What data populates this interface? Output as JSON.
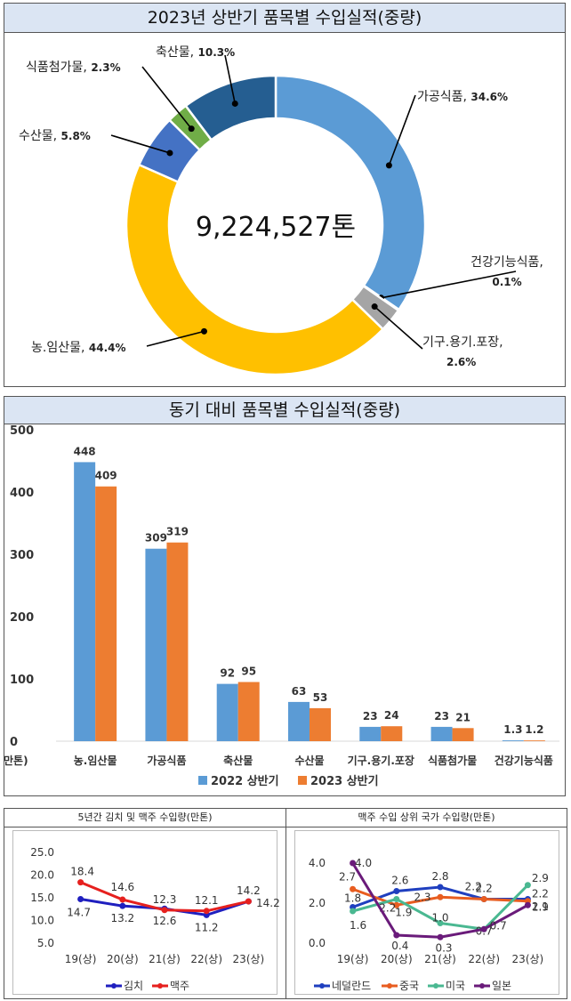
{
  "donut": {
    "title": "2023년 상반기 품목별 수입실적(중량)",
    "center_label": "9,224,527톤"
  },
  "bars": {
    "title": "동기 대비 품목별 수입실적(중량)",
    "unit": "만톤)"
  },
  "small1": {
    "title": "5년간 김치 및 맥주 수입량(만톤)"
  },
  "small2": {
    "title": "맥주 수입 상위 국가 수입량(만톤)"
  },
  "chart_data": [
    {
      "type": "pie",
      "title": "2023년 상반기 품목별 수입실적(중량)",
      "center_text": "9,224,527톤",
      "slices": [
        {
          "name": "가공식품",
          "value": 34.6,
          "label": "가공식품, 34.6%",
          "color": "#5b9bd5"
        },
        {
          "name": "건강기능식품",
          "value": 0.1,
          "label": "건강기능식품,|0.1%",
          "color": "#ffffff"
        },
        {
          "name": "기구.용기.포장",
          "value": 2.6,
          "label": "기구.용기.포장,|2.6%",
          "color": "#a5a5a5"
        },
        {
          "name": "농.임산물",
          "value": 44.4,
          "label": "농.임산물, 44.4%",
          "color": "#ffc000"
        },
        {
          "name": "수산물",
          "value": 5.8,
          "label": "수산물, 5.8%",
          "color": "#4472c4"
        },
        {
          "name": "식품첨가물",
          "value": 2.3,
          "label": "식품첨가물, 2.3%",
          "color": "#70ad47"
        },
        {
          "name": "축산물",
          "value": 10.3,
          "label": "축산물, 10.3%",
          "color": "#255e91"
        }
      ]
    },
    {
      "type": "bar",
      "title": "동기 대비 품목별 수입실적(중량)",
      "categories": [
        "농.임산물",
        "가공식품",
        "축산물",
        "수산물",
        "기구.용기.포장",
        "식품첨가물",
        "건강기능식품"
      ],
      "series": [
        {
          "name": "2022 상반기",
          "values": [
            448,
            309,
            92,
            63,
            23,
            23,
            1.3
          ],
          "color": "#5b9bd5"
        },
        {
          "name": "2023 상반기",
          "values": [
            409,
            319,
            95,
            53,
            24,
            21,
            1.2
          ],
          "color": "#ed7d31"
        }
      ],
      "ylim": [
        0,
        500
      ],
      "yticks": [
        0,
        100,
        200,
        300,
        400,
        500
      ],
      "ylabel": "",
      "legend": "bottom"
    },
    {
      "type": "line",
      "title": "5년간 김치 및 맥주 수입량(만톤)",
      "x": [
        "19(상)",
        "20(상)",
        "21(상)",
        "22(상)",
        "23(상)"
      ],
      "series": [
        {
          "name": "김치",
          "values": [
            14.7,
            13.2,
            12.6,
            11.2,
            14.2
          ],
          "color": "#1f1fbf"
        },
        {
          "name": "맥주",
          "values": [
            18.4,
            14.6,
            12.3,
            12.1,
            14.2
          ],
          "color": "#e6201e"
        }
      ],
      "ylim": [
        5.0,
        25.0
      ],
      "yticks": [
        "5.0",
        "10.0",
        "15.0",
        "20.0",
        "25.0"
      ],
      "legend": "bottom"
    },
    {
      "type": "line",
      "title": "맥주 수입 상위 국가 수입량(만톤)",
      "x": [
        "19(상)",
        "20(상)",
        "21(상)",
        "22(상)",
        "23(상)"
      ],
      "series": [
        {
          "name": "네덜란드",
          "values": [
            1.8,
            2.6,
            2.8,
            2.2,
            2.2
          ],
          "color": "#1f3fbf"
        },
        {
          "name": "중국",
          "values": [
            2.7,
            1.9,
            2.3,
            2.2,
            2.1
          ],
          "color": "#e85d20"
        },
        {
          "name": "미국",
          "values": [
            1.6,
            2.2,
            1.0,
            0.7,
            2.9
          ],
          "color": "#4ab891"
        },
        {
          "name": "일본",
          "values": [
            4.0,
            0.4,
            0.3,
            0.7,
            1.9
          ],
          "color": "#6a1b7a"
        }
      ],
      "ylim": [
        0.0,
        4.0
      ],
      "yticks": [
        "0.0",
        "2.0",
        "4.0"
      ],
      "legend": "bottom"
    }
  ]
}
